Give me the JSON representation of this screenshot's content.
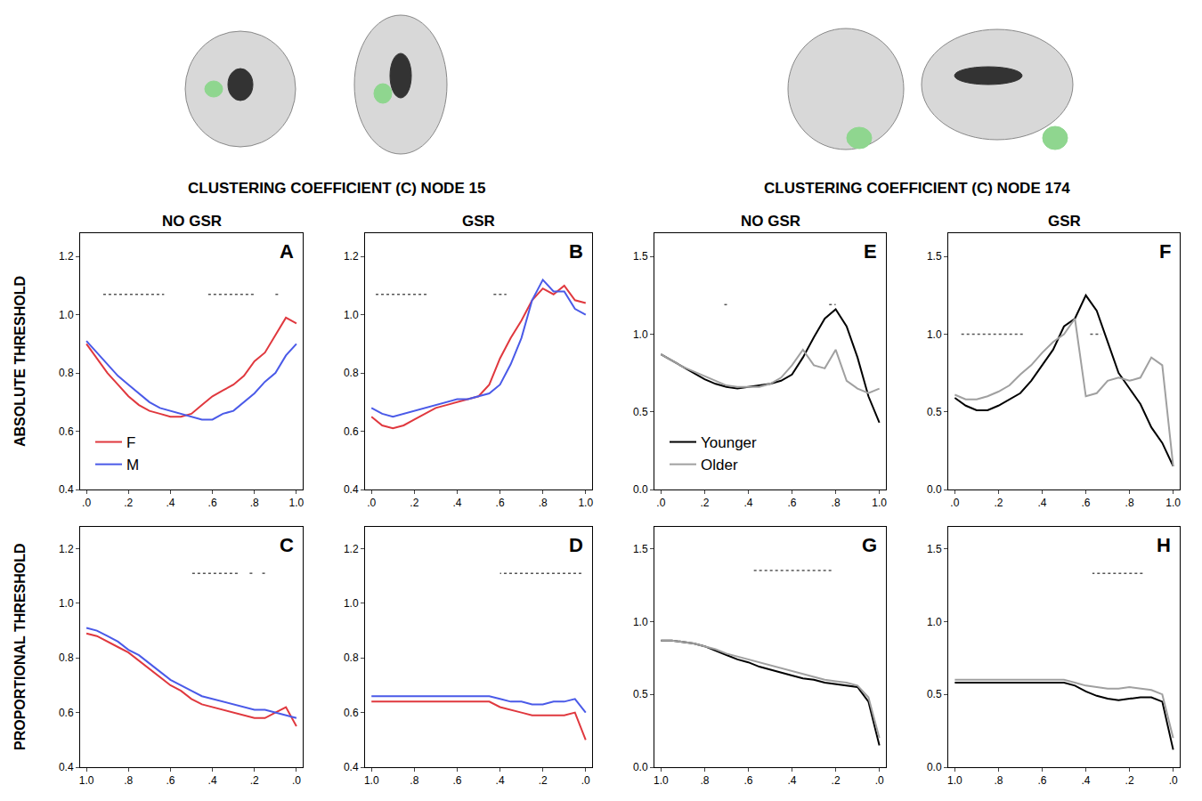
{
  "groups": [
    {
      "title": "CLUSTERING COEFFICIENT (C) NODE 15",
      "columns": [
        "NO GSR",
        "GSR"
      ]
    },
    {
      "title": "CLUSTERING COEFFICIENT (C) NODE 174",
      "columns": [
        "NO GSR",
        "GSR"
      ]
    }
  ],
  "rows": [
    "ABSOLUTE THRESHOLD",
    "PROPORTIONAL THRESHOLD"
  ],
  "chart_data": [
    {
      "type": "line",
      "title": "A",
      "legend": "lower left",
      "xlim": [
        -0.03,
        1.03
      ],
      "xticks": [
        {
          "value": 0,
          "label": ".0"
        },
        {
          "value": 0.2,
          "label": ".2"
        },
        {
          "value": 0.4,
          "label": ".4"
        },
        {
          "value": 0.6,
          "label": ".6"
        },
        {
          "value": 0.8,
          "label": ".8"
        },
        {
          "value": 1,
          "label": "1.0"
        }
      ],
      "ylim": [
        0.4,
        1.28
      ],
      "yticks": [
        0.4,
        0.6,
        0.8,
        {
          "value": 1,
          "label": "1.0"
        },
        1.2
      ],
      "x": [
        0,
        0.05,
        0.1,
        0.15,
        0.2,
        0.25,
        0.3,
        0.35,
        0.4,
        0.45,
        0.5,
        0.55,
        0.6,
        0.65,
        0.7,
        0.75,
        0.8,
        0.85,
        0.9,
        0.95,
        1
      ],
      "series": [
        {
          "name": "F",
          "color": "#e0383e",
          "values": [
            0.9,
            0.85,
            0.8,
            0.76,
            0.72,
            0.69,
            0.67,
            0.66,
            0.65,
            0.65,
            0.66,
            0.69,
            0.72,
            0.74,
            0.76,
            0.79,
            0.84,
            0.87,
            0.93,
            0.99,
            0.97
          ]
        },
        {
          "name": "M",
          "color": "#4a5ae8",
          "values": [
            0.91,
            0.87,
            0.83,
            0.79,
            0.76,
            0.73,
            0.7,
            0.68,
            0.67,
            0.66,
            0.65,
            0.64,
            0.64,
            0.66,
            0.67,
            0.7,
            0.73,
            0.77,
            0.8,
            0.86,
            0.9
          ]
        }
      ],
      "significance": {
        "y": 1.07,
        "ranges": [
          [
            0.08,
            0.37
          ],
          [
            0.58,
            0.8
          ],
          [
            0.9,
            0.92
          ]
        ]
      }
    },
    {
      "type": "line",
      "title": "B",
      "xlim": [
        -0.03,
        1.03
      ],
      "xticks": [
        {
          "value": 0,
          "label": ".0"
        },
        {
          "value": 0.2,
          "label": ".2"
        },
        {
          "value": 0.4,
          "label": ".4"
        },
        {
          "value": 0.6,
          "label": ".6"
        },
        {
          "value": 0.8,
          "label": ".8"
        },
        {
          "value": 1,
          "label": "1.0"
        }
      ],
      "ylim": [
        0.4,
        1.28
      ],
      "yticks": [
        0.4,
        0.6,
        0.8,
        {
          "value": 1,
          "label": "1.0"
        },
        1.2
      ],
      "x": [
        0,
        0.05,
        0.1,
        0.15,
        0.2,
        0.25,
        0.3,
        0.35,
        0.4,
        0.45,
        0.5,
        0.55,
        0.6,
        0.65,
        0.7,
        0.75,
        0.8,
        0.85,
        0.9,
        0.95,
        1
      ],
      "series": [
        {
          "name": "F",
          "color": "#e0383e",
          "values": [
            0.65,
            0.62,
            0.61,
            0.62,
            0.64,
            0.66,
            0.68,
            0.69,
            0.7,
            0.71,
            0.72,
            0.76,
            0.85,
            0.92,
            0.98,
            1.05,
            1.09,
            1.07,
            1.1,
            1.05,
            1.04
          ]
        },
        {
          "name": "M",
          "color": "#4a5ae8",
          "values": [
            0.68,
            0.66,
            0.65,
            0.66,
            0.67,
            0.68,
            0.69,
            0.7,
            0.71,
            0.71,
            0.72,
            0.73,
            0.76,
            0.83,
            0.92,
            1.05,
            1.12,
            1.08,
            1.08,
            1.02,
            1.0
          ]
        }
      ],
      "significance": {
        "y": 1.07,
        "ranges": [
          [
            0.02,
            0.26
          ],
          [
            0.57,
            0.63
          ]
        ]
      }
    },
    {
      "type": "line",
      "title": "C",
      "xlim": [
        1.03,
        -0.03
      ],
      "xticks": [
        {
          "value": 0,
          "label": ".0"
        },
        {
          "value": 0.2,
          "label": ".2"
        },
        {
          "value": 0.4,
          "label": ".4"
        },
        {
          "value": 0.6,
          "label": ".6"
        },
        {
          "value": 0.8,
          "label": ".8"
        },
        {
          "value": 1,
          "label": "1.0"
        }
      ],
      "ylim": [
        0.4,
        1.28
      ],
      "yticks": [
        0.4,
        0.6,
        0.8,
        {
          "value": 1,
          "label": "1.0"
        },
        1.2
      ],
      "x": [
        0,
        0.05,
        0.1,
        0.15,
        0.2,
        0.25,
        0.3,
        0.35,
        0.4,
        0.45,
        0.5,
        0.55,
        0.6,
        0.65,
        0.7,
        0.75,
        0.8,
        0.85,
        0.9,
        0.95,
        1
      ],
      "series": [
        {
          "name": "F",
          "color": "#e0383e",
          "values": [
            0.55,
            0.62,
            0.6,
            0.58,
            0.58,
            0.59,
            0.6,
            0.61,
            0.62,
            0.63,
            0.65,
            0.68,
            0.7,
            0.73,
            0.76,
            0.79,
            0.82,
            0.84,
            0.86,
            0.88,
            0.89
          ]
        },
        {
          "name": "M",
          "color": "#4a5ae8",
          "values": [
            0.58,
            0.59,
            0.6,
            0.61,
            0.61,
            0.62,
            0.63,
            0.64,
            0.65,
            0.66,
            0.68,
            0.7,
            0.72,
            0.75,
            0.78,
            0.81,
            0.83,
            0.86,
            0.88,
            0.9,
            0.91
          ]
        }
      ],
      "significance": {
        "y": 1.11,
        "ranges": [
          [
            0.28,
            0.5
          ],
          [
            0.21,
            0.23
          ],
          [
            0.15,
            0.17
          ]
        ]
      }
    },
    {
      "type": "line",
      "title": "D",
      "xlim": [
        1.03,
        -0.03
      ],
      "xticks": [
        {
          "value": 0,
          "label": ".0"
        },
        {
          "value": 0.2,
          "label": ".2"
        },
        {
          "value": 0.4,
          "label": ".4"
        },
        {
          "value": 0.6,
          "label": ".6"
        },
        {
          "value": 0.8,
          "label": ".8"
        },
        {
          "value": 1,
          "label": "1.0"
        }
      ],
      "ylim": [
        0.4,
        1.28
      ],
      "yticks": [
        0.4,
        0.6,
        0.8,
        {
          "value": 1,
          "label": "1.0"
        },
        1.2
      ],
      "x": [
        0,
        0.05,
        0.1,
        0.15,
        0.2,
        0.25,
        0.3,
        0.35,
        0.4,
        0.45,
        0.5,
        0.55,
        0.6,
        0.65,
        0.7,
        0.75,
        0.8,
        0.85,
        0.9,
        0.95,
        1
      ],
      "series": [
        {
          "name": "F",
          "color": "#e0383e",
          "values": [
            0.5,
            0.6,
            0.59,
            0.59,
            0.59,
            0.59,
            0.6,
            0.61,
            0.62,
            0.64,
            0.64,
            0.64,
            0.64,
            0.64,
            0.64,
            0.64,
            0.64,
            0.64,
            0.64,
            0.64,
            0.64
          ]
        },
        {
          "name": "M",
          "color": "#4a5ae8",
          "values": [
            0.6,
            0.65,
            0.64,
            0.64,
            0.63,
            0.63,
            0.64,
            0.64,
            0.65,
            0.66,
            0.66,
            0.66,
            0.66,
            0.66,
            0.66,
            0.66,
            0.66,
            0.66,
            0.66,
            0.66,
            0.66
          ]
        }
      ],
      "significance": {
        "y": 1.11,
        "ranges": [
          [
            0.02,
            0.4
          ]
        ]
      }
    },
    {
      "type": "line",
      "title": "E",
      "legend": "lower left",
      "xlim": [
        -0.03,
        1.03
      ],
      "xticks": [
        {
          "value": 0,
          "label": ".0"
        },
        {
          "value": 0.2,
          "label": ".2"
        },
        {
          "value": 0.4,
          "label": ".4"
        },
        {
          "value": 0.6,
          "label": ".6"
        },
        {
          "value": 0.8,
          "label": ".8"
        },
        {
          "value": 1,
          "label": "1.0"
        }
      ],
      "ylim": [
        0,
        1.65
      ],
      "yticks": [
        {
          "value": 0,
          "label": "0.0"
        },
        0.5,
        {
          "value": 1,
          "label": "1.0"
        },
        1.5
      ],
      "x": [
        0,
        0.05,
        0.1,
        0.15,
        0.2,
        0.25,
        0.3,
        0.35,
        0.4,
        0.45,
        0.5,
        0.55,
        0.6,
        0.65,
        0.7,
        0.75,
        0.8,
        0.85,
        0.9,
        0.95,
        1
      ],
      "series": [
        {
          "name": "Younger",
          "color": "#000000",
          "values": [
            0.87,
            0.83,
            0.79,
            0.75,
            0.71,
            0.68,
            0.66,
            0.65,
            0.66,
            0.67,
            0.68,
            0.7,
            0.74,
            0.85,
            0.98,
            1.1,
            1.16,
            1.05,
            0.85,
            0.6,
            0.43
          ]
        },
        {
          "name": "Older",
          "color": "#a0a0a0",
          "values": [
            0.87,
            0.83,
            0.79,
            0.76,
            0.73,
            0.7,
            0.67,
            0.66,
            0.66,
            0.66,
            0.68,
            0.72,
            0.8,
            0.9,
            0.8,
            0.78,
            0.9,
            0.7,
            0.65,
            0.62,
            0.65
          ]
        }
      ],
      "significance": {
        "y": 1.19,
        "ranges": [
          [
            0.29,
            0.31
          ],
          [
            0.77,
            0.8
          ]
        ]
      }
    },
    {
      "type": "line",
      "title": "F",
      "xlim": [
        -0.03,
        1.03
      ],
      "xticks": [
        {
          "value": 0,
          "label": ".0"
        },
        {
          "value": 0.2,
          "label": ".2"
        },
        {
          "value": 0.4,
          "label": ".4"
        },
        {
          "value": 0.6,
          "label": ".6"
        },
        {
          "value": 0.8,
          "label": ".8"
        },
        {
          "value": 1,
          "label": "1.0"
        }
      ],
      "ylim": [
        0,
        1.65
      ],
      "yticks": [
        {
          "value": 0,
          "label": "0.0"
        },
        0.5,
        {
          "value": 1,
          "label": "1.0"
        },
        1.5
      ],
      "x": [
        0,
        0.05,
        0.1,
        0.15,
        0.2,
        0.25,
        0.3,
        0.35,
        0.4,
        0.45,
        0.5,
        0.55,
        0.6,
        0.65,
        0.7,
        0.75,
        0.8,
        0.85,
        0.9,
        0.95,
        1
      ],
      "series": [
        {
          "name": "Younger",
          "color": "#000000",
          "values": [
            0.59,
            0.54,
            0.51,
            0.51,
            0.54,
            0.58,
            0.62,
            0.7,
            0.8,
            0.9,
            1.05,
            1.1,
            1.25,
            1.15,
            0.95,
            0.75,
            0.65,
            0.55,
            0.4,
            0.3,
            0.15
          ]
        },
        {
          "name": "Older",
          "color": "#a0a0a0",
          "values": [
            0.61,
            0.58,
            0.58,
            0.6,
            0.63,
            0.67,
            0.74,
            0.8,
            0.88,
            0.95,
            1.0,
            1.1,
            0.6,
            0.62,
            0.7,
            0.72,
            0.7,
            0.72,
            0.85,
            0.8,
            0.15
          ]
        }
      ],
      "significance": {
        "y": 1.0,
        "ranges": [
          [
            0.03,
            0.32
          ],
          [
            0.62,
            0.67
          ]
        ]
      }
    },
    {
      "type": "line",
      "title": "G",
      "xlim": [
        1.03,
        -0.03
      ],
      "xticks": [
        {
          "value": 0,
          "label": ".0"
        },
        {
          "value": 0.2,
          "label": ".2"
        },
        {
          "value": 0.4,
          "label": ".4"
        },
        {
          "value": 0.6,
          "label": ".6"
        },
        {
          "value": 0.8,
          "label": ".8"
        },
        {
          "value": 1,
          "label": "1.0"
        }
      ],
      "ylim": [
        0,
        1.65
      ],
      "yticks": [
        {
          "value": 0,
          "label": "0.0"
        },
        0.5,
        {
          "value": 1,
          "label": "1.0"
        },
        1.5
      ],
      "x": [
        0,
        0.05,
        0.1,
        0.15,
        0.2,
        0.25,
        0.3,
        0.35,
        0.4,
        0.45,
        0.5,
        0.55,
        0.6,
        0.65,
        0.7,
        0.75,
        0.8,
        0.85,
        0.9,
        0.95,
        1
      ],
      "series": [
        {
          "name": "Younger",
          "color": "#000000",
          "values": [
            0.15,
            0.45,
            0.55,
            0.56,
            0.57,
            0.58,
            0.6,
            0.61,
            0.63,
            0.65,
            0.67,
            0.69,
            0.72,
            0.74,
            0.77,
            0.8,
            0.83,
            0.85,
            0.86,
            0.87,
            0.87
          ]
        },
        {
          "name": "Older",
          "color": "#a0a0a0",
          "values": [
            0.2,
            0.48,
            0.56,
            0.58,
            0.59,
            0.6,
            0.62,
            0.64,
            0.66,
            0.68,
            0.7,
            0.72,
            0.74,
            0.76,
            0.78,
            0.81,
            0.83,
            0.85,
            0.86,
            0.87,
            0.87
          ]
        }
      ],
      "significance": {
        "y": 1.35,
        "ranges": [
          [
            0.22,
            0.58
          ]
        ]
      }
    },
    {
      "type": "line",
      "title": "H",
      "xlim": [
        1.03,
        -0.03
      ],
      "xticks": [
        {
          "value": 0,
          "label": ".0"
        },
        {
          "value": 0.2,
          "label": ".2"
        },
        {
          "value": 0.4,
          "label": ".4"
        },
        {
          "value": 0.6,
          "label": ".6"
        },
        {
          "value": 0.8,
          "label": ".8"
        },
        {
          "value": 1,
          "label": "1.0"
        }
      ],
      "ylim": [
        0,
        1.65
      ],
      "yticks": [
        {
          "value": 0,
          "label": "0.0"
        },
        0.5,
        {
          "value": 1,
          "label": "1.0"
        },
        1.5
      ],
      "x": [
        0,
        0.05,
        0.1,
        0.15,
        0.2,
        0.25,
        0.3,
        0.35,
        0.4,
        0.45,
        0.5,
        0.55,
        0.6,
        0.65,
        0.7,
        0.75,
        0.8,
        0.85,
        0.9,
        0.95,
        1
      ],
      "series": [
        {
          "name": "Younger",
          "color": "#000000",
          "values": [
            0.12,
            0.45,
            0.48,
            0.48,
            0.47,
            0.46,
            0.47,
            0.49,
            0.52,
            0.56,
            0.58,
            0.58,
            0.58,
            0.58,
            0.58,
            0.58,
            0.58,
            0.58,
            0.58,
            0.58,
            0.58
          ]
        },
        {
          "name": "Older",
          "color": "#a0a0a0",
          "values": [
            0.2,
            0.5,
            0.53,
            0.54,
            0.55,
            0.54,
            0.54,
            0.55,
            0.56,
            0.58,
            0.6,
            0.6,
            0.6,
            0.6,
            0.6,
            0.6,
            0.6,
            0.6,
            0.6,
            0.6,
            0.6
          ]
        }
      ],
      "significance": {
        "y": 1.33,
        "ranges": [
          [
            0.14,
            0.37
          ]
        ]
      }
    }
  ]
}
